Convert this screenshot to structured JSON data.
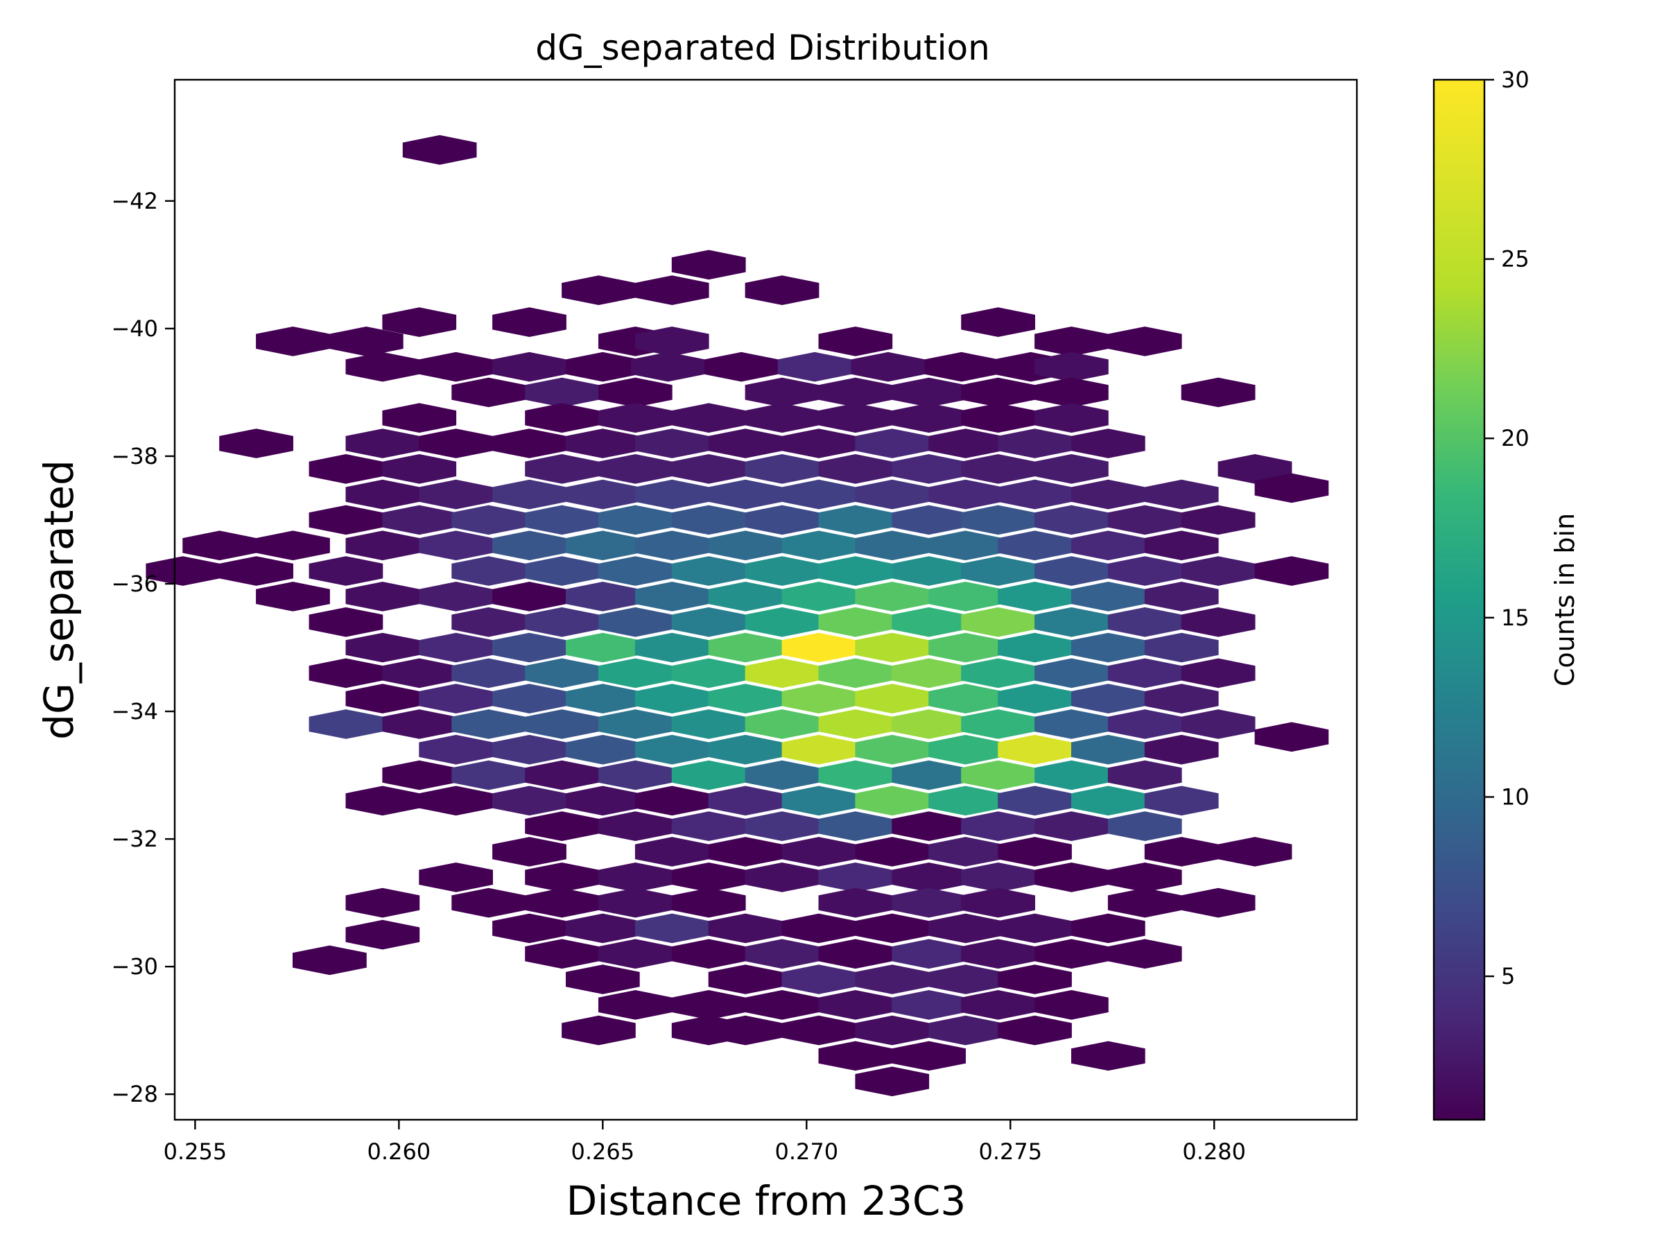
{
  "chart_data": {
    "type": "hexbin",
    "title": "dG_separated Distribution",
    "xlabel": "Distance from 23C3",
    "ylabel": "dG_separated",
    "xlim": [
      0.2545,
      0.2835
    ],
    "ylim": [
      -27.6,
      -43.9
    ],
    "x_ticks": [
      0.255,
      0.26,
      0.265,
      0.27,
      0.275,
      0.28
    ],
    "x_tick_labels": [
      "0.255",
      "0.260",
      "0.265",
      "0.270",
      "0.275",
      "0.280"
    ],
    "y_ticks": [
      -42,
      -40,
      -38,
      -36,
      -34,
      -32,
      -30,
      -28
    ],
    "y_tick_labels": [
      "−42",
      "−40",
      "−38",
      "−36",
      "−34",
      "−32",
      "−30",
      "−28"
    ],
    "hex_spacing": {
      "dx": 0.00089,
      "dy": 0.4
    },
    "colormap": "viridis",
    "colorbar": {
      "label": "Counts in bin",
      "min": 1,
      "max": 30,
      "ticks": [
        5,
        10,
        15,
        20,
        25,
        30
      ],
      "tick_labels": [
        "5",
        "10",
        "15",
        "20",
        "25",
        "30"
      ]
    },
    "bins": [
      [
        0.261,
        -42.8,
        1
      ],
      [
        0.2676,
        -41.0,
        1
      ],
      [
        0.2649,
        -40.6,
        1
      ],
      [
        0.2667,
        -40.6,
        1
      ],
      [
        0.2694,
        -40.6,
        1
      ],
      [
        0.2574,
        -39.8,
        1
      ],
      [
        0.2592,
        -39.8,
        1
      ],
      [
        0.2658,
        -39.8,
        1
      ],
      [
        0.2667,
        -39.8,
        2
      ],
      [
        0.2712,
        -39.8,
        1
      ],
      [
        0.2765,
        -39.8,
        1
      ],
      [
        0.2783,
        -39.8,
        1
      ],
      [
        0.2605,
        -40.1,
        1
      ],
      [
        0.2632,
        -40.1,
        1
      ],
      [
        0.2747,
        -40.1,
        1
      ],
      [
        0.2596,
        -39.4,
        1
      ],
      [
        0.2614,
        -39.4,
        1
      ],
      [
        0.2632,
        -39.4,
        2
      ],
      [
        0.265,
        -39.4,
        1
      ],
      [
        0.2666,
        -39.4,
        2
      ],
      [
        0.2684,
        -39.4,
        1
      ],
      [
        0.2702,
        -39.4,
        4
      ],
      [
        0.272,
        -39.4,
        2
      ],
      [
        0.2738,
        -39.4,
        1
      ],
      [
        0.2755,
        -39.4,
        1
      ],
      [
        0.2765,
        -39.4,
        2
      ],
      [
        0.2622,
        -39.0,
        1
      ],
      [
        0.264,
        -39.0,
        3
      ],
      [
        0.2658,
        -39.0,
        1
      ],
      [
        0.2694,
        -39.0,
        2
      ],
      [
        0.2712,
        -39.0,
        2
      ],
      [
        0.273,
        -39.0,
        2
      ],
      [
        0.2747,
        -39.0,
        1
      ],
      [
        0.2765,
        -39.0,
        1
      ],
      [
        0.2801,
        -39.0,
        1
      ],
      [
        0.2605,
        -38.6,
        1
      ],
      [
        0.264,
        -38.6,
        1
      ],
      [
        0.2658,
        -38.6,
        2
      ],
      [
        0.2676,
        -38.6,
        2
      ],
      [
        0.2694,
        -38.6,
        2
      ],
      [
        0.2712,
        -38.6,
        2
      ],
      [
        0.273,
        -38.6,
        2
      ],
      [
        0.2747,
        -38.6,
        1
      ],
      [
        0.2765,
        -38.6,
        2
      ],
      [
        0.2565,
        -38.2,
        1
      ],
      [
        0.2596,
        -38.2,
        2
      ],
      [
        0.2614,
        -38.2,
        1
      ],
      [
        0.2632,
        -38.2,
        1
      ],
      [
        0.265,
        -38.2,
        2
      ],
      [
        0.2667,
        -38.2,
        3
      ],
      [
        0.2685,
        -38.2,
        2
      ],
      [
        0.2703,
        -38.2,
        2
      ],
      [
        0.2721,
        -38.2,
        4
      ],
      [
        0.2739,
        -38.2,
        2
      ],
      [
        0.2756,
        -38.2,
        3
      ],
      [
        0.2774,
        -38.2,
        2
      ],
      [
        0.2587,
        -37.8,
        1
      ],
      [
        0.2605,
        -37.8,
        2
      ],
      [
        0.264,
        -37.8,
        3
      ],
      [
        0.2658,
        -37.8,
        3
      ],
      [
        0.2676,
        -37.8,
        3
      ],
      [
        0.2694,
        -37.8,
        5
      ],
      [
        0.2712,
        -37.8,
        3
      ],
      [
        0.273,
        -37.8,
        4
      ],
      [
        0.2747,
        -37.8,
        3
      ],
      [
        0.2765,
        -37.8,
        3
      ],
      [
        0.281,
        -37.8,
        2
      ],
      [
        0.2819,
        -37.5,
        1
      ],
      [
        0.2596,
        -37.4,
        2
      ],
      [
        0.2614,
        -37.4,
        3
      ],
      [
        0.2632,
        -37.4,
        5
      ],
      [
        0.265,
        -37.4,
        5
      ],
      [
        0.2667,
        -37.4,
        6
      ],
      [
        0.2685,
        -37.4,
        6
      ],
      [
        0.2703,
        -37.4,
        6
      ],
      [
        0.2721,
        -37.4,
        5
      ],
      [
        0.2739,
        -37.4,
        4
      ],
      [
        0.2756,
        -37.4,
        4
      ],
      [
        0.2774,
        -37.4,
        3
      ],
      [
        0.2792,
        -37.4,
        3
      ],
      [
        0.2587,
        -37.0,
        1
      ],
      [
        0.2605,
        -37.0,
        3
      ],
      [
        0.2622,
        -37.0,
        5
      ],
      [
        0.264,
        -37.0,
        7
      ],
      [
        0.2658,
        -37.0,
        9
      ],
      [
        0.2676,
        -37.0,
        8
      ],
      [
        0.2694,
        -37.0,
        7
      ],
      [
        0.2712,
        -37.0,
        11
      ],
      [
        0.273,
        -37.0,
        7
      ],
      [
        0.2747,
        -37.0,
        8
      ],
      [
        0.2765,
        -37.0,
        5
      ],
      [
        0.2783,
        -37.0,
        3
      ],
      [
        0.2801,
        -37.0,
        2
      ],
      [
        0.2556,
        -36.6,
        1
      ],
      [
        0.2574,
        -36.6,
        1
      ],
      [
        0.2596,
        -36.6,
        2
      ],
      [
        0.2614,
        -36.6,
        4
      ],
      [
        0.2632,
        -36.6,
        8
      ],
      [
        0.265,
        -36.6,
        10
      ],
      [
        0.2667,
        -36.6,
        9
      ],
      [
        0.2685,
        -36.6,
        10
      ],
      [
        0.2703,
        -36.6,
        12
      ],
      [
        0.2721,
        -36.6,
        10
      ],
      [
        0.2739,
        -36.6,
        10
      ],
      [
        0.2756,
        -36.6,
        7
      ],
      [
        0.2774,
        -36.6,
        4
      ],
      [
        0.2792,
        -36.6,
        2
      ],
      [
        0.2547,
        -36.2,
        1
      ],
      [
        0.2565,
        -36.2,
        1
      ],
      [
        0.2587,
        -36.2,
        2
      ],
      [
        0.2622,
        -36.2,
        5
      ],
      [
        0.264,
        -36.2,
        7
      ],
      [
        0.2658,
        -36.2,
        9
      ],
      [
        0.2676,
        -36.2,
        12
      ],
      [
        0.2694,
        -36.2,
        14
      ],
      [
        0.2712,
        -36.2,
        15
      ],
      [
        0.273,
        -36.2,
        14
      ],
      [
        0.2747,
        -36.2,
        12
      ],
      [
        0.2765,
        -36.2,
        7
      ],
      [
        0.2783,
        -36.2,
        4
      ],
      [
        0.2801,
        -36.2,
        3
      ],
      [
        0.2819,
        -36.2,
        1
      ],
      [
        0.2574,
        -35.8,
        1
      ],
      [
        0.2596,
        -35.8,
        2
      ],
      [
        0.2614,
        -35.8,
        3
      ],
      [
        0.2632,
        -35.8,
        1
      ],
      [
        0.265,
        -35.8,
        5
      ],
      [
        0.2667,
        -35.8,
        10
      ],
      [
        0.2685,
        -35.8,
        14
      ],
      [
        0.2703,
        -35.8,
        17
      ],
      [
        0.2721,
        -35.8,
        20
      ],
      [
        0.2739,
        -35.8,
        19
      ],
      [
        0.2756,
        -35.8,
        15
      ],
      [
        0.2774,
        -35.8,
        9
      ],
      [
        0.2792,
        -35.8,
        3
      ],
      [
        0.2587,
        -35.4,
        1
      ],
      [
        0.2622,
        -35.4,
        3
      ],
      [
        0.264,
        -35.4,
        5
      ],
      [
        0.2658,
        -35.4,
        8
      ],
      [
        0.2676,
        -35.4,
        12
      ],
      [
        0.2694,
        -35.4,
        16
      ],
      [
        0.2712,
        -35.4,
        21
      ],
      [
        0.273,
        -35.4,
        18
      ],
      [
        0.2747,
        -35.4,
        22
      ],
      [
        0.2765,
        -35.4,
        12
      ],
      [
        0.2783,
        -35.4,
        5
      ],
      [
        0.2801,
        -35.4,
        2
      ],
      [
        0.2596,
        -35.0,
        2
      ],
      [
        0.2614,
        -35.0,
        4
      ],
      [
        0.2632,
        -35.0,
        7
      ],
      [
        0.265,
        -35.0,
        19
      ],
      [
        0.2667,
        -35.0,
        14
      ],
      [
        0.2685,
        -35.0,
        20
      ],
      [
        0.2703,
        -35.0,
        30
      ],
      [
        0.2721,
        -35.0,
        24
      ],
      [
        0.2739,
        -35.0,
        20
      ],
      [
        0.2756,
        -35.0,
        15
      ],
      [
        0.2774,
        -35.0,
        9
      ],
      [
        0.2792,
        -35.0,
        5
      ],
      [
        0.2587,
        -34.6,
        1
      ],
      [
        0.2605,
        -34.6,
        2
      ],
      [
        0.2622,
        -34.6,
        6
      ],
      [
        0.264,
        -34.6,
        10
      ],
      [
        0.2658,
        -34.6,
        16
      ],
      [
        0.2676,
        -34.6,
        17
      ],
      [
        0.2694,
        -34.6,
        25
      ],
      [
        0.2712,
        -34.6,
        21
      ],
      [
        0.273,
        -34.6,
        22
      ],
      [
        0.2747,
        -34.6,
        17
      ],
      [
        0.2765,
        -34.6,
        9
      ],
      [
        0.2783,
        -34.6,
        4
      ],
      [
        0.2801,
        -34.6,
        2
      ],
      [
        0.2596,
        -34.2,
        1
      ],
      [
        0.2614,
        -34.2,
        4
      ],
      [
        0.2632,
        -34.2,
        7
      ],
      [
        0.265,
        -34.2,
        11
      ],
      [
        0.2667,
        -34.2,
        15
      ],
      [
        0.2685,
        -34.2,
        17
      ],
      [
        0.2703,
        -34.2,
        22
      ],
      [
        0.2721,
        -34.2,
        24
      ],
      [
        0.2739,
        -34.2,
        19
      ],
      [
        0.2756,
        -34.2,
        15
      ],
      [
        0.2774,
        -34.2,
        7
      ],
      [
        0.2792,
        -34.2,
        3
      ],
      [
        0.2587,
        -33.8,
        6
      ],
      [
        0.2605,
        -33.8,
        2
      ],
      [
        0.2622,
        -33.8,
        8
      ],
      [
        0.264,
        -33.8,
        8
      ],
      [
        0.2658,
        -33.8,
        11
      ],
      [
        0.2676,
        -33.8,
        14
      ],
      [
        0.2694,
        -33.8,
        20
      ],
      [
        0.2712,
        -33.8,
        24
      ],
      [
        0.273,
        -33.8,
        23
      ],
      [
        0.2747,
        -33.8,
        18
      ],
      [
        0.2765,
        -33.8,
        9
      ],
      [
        0.2783,
        -33.8,
        4
      ],
      [
        0.2801,
        -33.8,
        3
      ],
      [
        0.2819,
        -33.6,
        1
      ],
      [
        0.2614,
        -33.4,
        4
      ],
      [
        0.2632,
        -33.4,
        5
      ],
      [
        0.265,
        -33.4,
        8
      ],
      [
        0.2667,
        -33.4,
        12
      ],
      [
        0.2685,
        -33.4,
        13
      ],
      [
        0.2703,
        -33.4,
        26
      ],
      [
        0.2721,
        -33.4,
        20
      ],
      [
        0.2739,
        -33.4,
        18
      ],
      [
        0.2756,
        -33.4,
        27
      ],
      [
        0.2774,
        -33.4,
        10
      ],
      [
        0.2792,
        -33.4,
        2
      ],
      [
        0.2605,
        -33.0,
        1
      ],
      [
        0.2622,
        -33.0,
        5
      ],
      [
        0.264,
        -33.0,
        2
      ],
      [
        0.2658,
        -33.0,
        5
      ],
      [
        0.2676,
        -33.0,
        16
      ],
      [
        0.2694,
        -33.0,
        10
      ],
      [
        0.2712,
        -33.0,
        18
      ],
      [
        0.273,
        -33.0,
        11
      ],
      [
        0.2747,
        -33.0,
        21
      ],
      [
        0.2765,
        -33.0,
        15
      ],
      [
        0.2783,
        -33.0,
        3
      ],
      [
        0.2596,
        -32.6,
        1
      ],
      [
        0.2614,
        -32.6,
        1
      ],
      [
        0.2632,
        -32.6,
        3
      ],
      [
        0.265,
        -32.6,
        2
      ],
      [
        0.2667,
        -32.6,
        1
      ],
      [
        0.2685,
        -32.6,
        4
      ],
      [
        0.2703,
        -32.6,
        12
      ],
      [
        0.2721,
        -32.6,
        21
      ],
      [
        0.2739,
        -32.6,
        17
      ],
      [
        0.2756,
        -32.6,
        6
      ],
      [
        0.2774,
        -32.6,
        15
      ],
      [
        0.2792,
        -32.6,
        5
      ],
      [
        0.264,
        -32.2,
        1
      ],
      [
        0.2658,
        -32.2,
        2
      ],
      [
        0.2676,
        -32.2,
        4
      ],
      [
        0.2694,
        -32.2,
        5
      ],
      [
        0.2712,
        -32.2,
        8
      ],
      [
        0.273,
        -32.2,
        1
      ],
      [
        0.2747,
        -32.2,
        4
      ],
      [
        0.2765,
        -32.2,
        3
      ],
      [
        0.2783,
        -32.2,
        7
      ],
      [
        0.2632,
        -31.8,
        1
      ],
      [
        0.2667,
        -31.8,
        2
      ],
      [
        0.2685,
        -31.8,
        1
      ],
      [
        0.2703,
        -31.8,
        2
      ],
      [
        0.2721,
        -31.8,
        1
      ],
      [
        0.2739,
        -31.8,
        3
      ],
      [
        0.2756,
        -31.8,
        1
      ],
      [
        0.2792,
        -31.8,
        1
      ],
      [
        0.281,
        -31.8,
        1
      ],
      [
        0.2614,
        -31.4,
        1
      ],
      [
        0.264,
        -31.4,
        1
      ],
      [
        0.2658,
        -31.4,
        2
      ],
      [
        0.2676,
        -31.4,
        1
      ],
      [
        0.2694,
        -31.4,
        2
      ],
      [
        0.2712,
        -31.4,
        4
      ],
      [
        0.273,
        -31.4,
        2
      ],
      [
        0.2747,
        -31.4,
        3
      ],
      [
        0.2765,
        -31.4,
        1
      ],
      [
        0.2783,
        -31.4,
        1
      ],
      [
        0.2596,
        -31.0,
        1
      ],
      [
        0.2622,
        -31.0,
        1
      ],
      [
        0.264,
        -31.0,
        1
      ],
      [
        0.2658,
        -31.0,
        2
      ],
      [
        0.2676,
        -31.0,
        1
      ],
      [
        0.2712,
        -31.0,
        2
      ],
      [
        0.273,
        -31.0,
        3
      ],
      [
        0.2747,
        -31.0,
        2
      ],
      [
        0.2783,
        -31.0,
        1
      ],
      [
        0.2801,
        -31.0,
        1
      ],
      [
        0.2632,
        -30.6,
        1
      ],
      [
        0.265,
        -30.6,
        2
      ],
      [
        0.2667,
        -30.6,
        5
      ],
      [
        0.2685,
        -30.6,
        2
      ],
      [
        0.2703,
        -30.6,
        1
      ],
      [
        0.2721,
        -30.6,
        1
      ],
      [
        0.2739,
        -30.6,
        2
      ],
      [
        0.2756,
        -30.6,
        2
      ],
      [
        0.2774,
        -30.6,
        1
      ],
      [
        0.2596,
        -30.5,
        1
      ],
      [
        0.2583,
        -30.1,
        1
      ],
      [
        0.264,
        -30.2,
        1
      ],
      [
        0.2658,
        -30.2,
        2
      ],
      [
        0.2676,
        -30.2,
        1
      ],
      [
        0.2694,
        -30.2,
        3
      ],
      [
        0.2712,
        -30.2,
        1
      ],
      [
        0.273,
        -30.2,
        4
      ],
      [
        0.2747,
        -30.2,
        2
      ],
      [
        0.2765,
        -30.2,
        1
      ],
      [
        0.2783,
        -30.2,
        1
      ],
      [
        0.265,
        -29.8,
        1
      ],
      [
        0.2685,
        -29.8,
        1
      ],
      [
        0.2703,
        -29.8,
        4
      ],
      [
        0.2721,
        -29.8,
        3
      ],
      [
        0.2739,
        -29.8,
        3
      ],
      [
        0.2756,
        -29.8,
        1
      ],
      [
        0.2658,
        -29.4,
        1
      ],
      [
        0.2676,
        -29.4,
        1
      ],
      [
        0.2694,
        -29.4,
        1
      ],
      [
        0.2712,
        -29.4,
        2
      ],
      [
        0.273,
        -29.4,
        4
      ],
      [
        0.2747,
        -29.4,
        2
      ],
      [
        0.2765,
        -29.4,
        1
      ],
      [
        0.2649,
        -29.0,
        1
      ],
      [
        0.2676,
        -29.0,
        1
      ],
      [
        0.2685,
        -29.0,
        1
      ],
      [
        0.2703,
        -29.0,
        1
      ],
      [
        0.2721,
        -29.0,
        2
      ],
      [
        0.2739,
        -29.0,
        3
      ],
      [
        0.2756,
        -29.0,
        1
      ],
      [
        0.2712,
        -28.6,
        1
      ],
      [
        0.273,
        -28.6,
        1
      ],
      [
        0.2774,
        -28.6,
        1
      ],
      [
        0.2721,
        -28.2,
        1
      ]
    ]
  }
}
